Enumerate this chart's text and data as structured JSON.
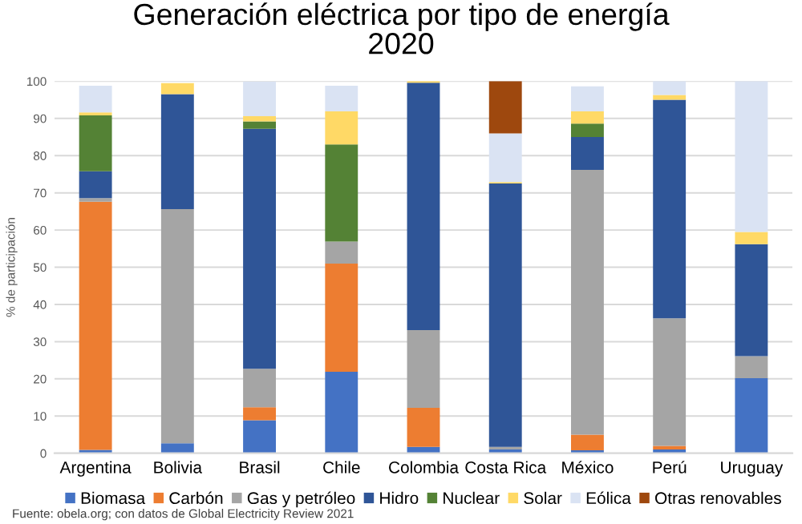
{
  "chart_data": {
    "type": "bar",
    "stacked": true,
    "title": "Generación eléctrica por tipo de energía\n2020",
    "ylabel": "% de participación",
    "categories": [
      "Argentina",
      "Bolivia",
      "Brasil",
      "Chile",
      "Colombia",
      "Costa Rica",
      "México",
      "Perú",
      "Uruguay"
    ],
    "series": [
      {
        "name": "Biomasa",
        "color": "#4472c4",
        "values": [
          0.9,
          2.7,
          8.9,
          21.9,
          1.7,
          1.0,
          0.8,
          1.0,
          20.2
        ]
      },
      {
        "name": "Carbón",
        "color": "#ed7d31",
        "values": [
          66.7,
          0,
          3.5,
          29.1,
          10.5,
          0,
          4.2,
          1.0,
          0
        ]
      },
      {
        "name": "Gas y petróleo",
        "color": "#a5a5a5",
        "values": [
          1.0,
          62.9,
          10.3,
          5.9,
          20.9,
          0.7,
          71.2,
          34.3,
          5.9
        ]
      },
      {
        "name": "Hidro",
        "color": "#2f5597",
        "values": [
          7.2,
          30.9,
          64.5,
          0,
          66.5,
          70.8,
          8.8,
          58.7,
          30.1
        ]
      },
      {
        "name": "Nuclear",
        "color": "#548235",
        "values": [
          15.0,
          0,
          2.0,
          26.1,
          0,
          0,
          3.6,
          0,
          0
        ]
      },
      {
        "name": "Solar",
        "color": "#ffd966",
        "values": [
          0.8,
          3.0,
          1.4,
          8.9,
          0.4,
          0.4,
          3.3,
          1.3,
          3.3
        ]
      },
      {
        "name": "Eólica",
        "color": "#dae3f3",
        "values": [
          7.2,
          null,
          9.3,
          6.9,
          0,
          13.1,
          6.7,
          3.7,
          40.5
        ]
      },
      {
        "name": "Otras renovables",
        "color": "#9e480e",
        "values": [
          0,
          0,
          0,
          0,
          0,
          14.0,
          0,
          0,
          0
        ]
      }
    ],
    "ylim": [
      0,
      100
    ],
    "yticks": [
      0,
      10,
      20,
      30,
      40,
      50,
      60,
      70,
      80,
      90,
      100
    ],
    "grid": "y",
    "legend": "bottom",
    "annotations": [
      "Fuente: obela.org; con datos de Global Electricity Review 2021"
    ]
  }
}
